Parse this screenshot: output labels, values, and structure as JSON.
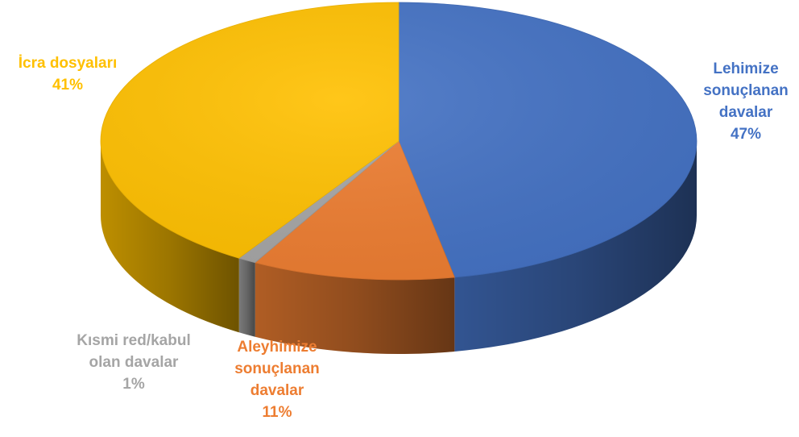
{
  "chart_data": {
    "type": "pie",
    "style": "3d",
    "title": "",
    "slices": [
      {
        "name_lines": [
          "Lehimize",
          "sonuçlanan",
          "davalar"
        ],
        "percent_label": "47%",
        "value": 47,
        "color": "#4472C4"
      },
      {
        "name_lines": [
          "Aleyhimize",
          "sonuçlanan",
          "davalar"
        ],
        "percent_label": "11%",
        "value": 11,
        "color": "#ED7D31"
      },
      {
        "name_lines": [
          "Kısmi red/kabul",
          "olan davalar"
        ],
        "percent_label": "1%",
        "value": 1,
        "color": "#A5A5A5"
      },
      {
        "name_lines": [
          "İcra dosyaları"
        ],
        "percent_label": "41%",
        "value": 41,
        "color": "#FFC000"
      }
    ]
  }
}
